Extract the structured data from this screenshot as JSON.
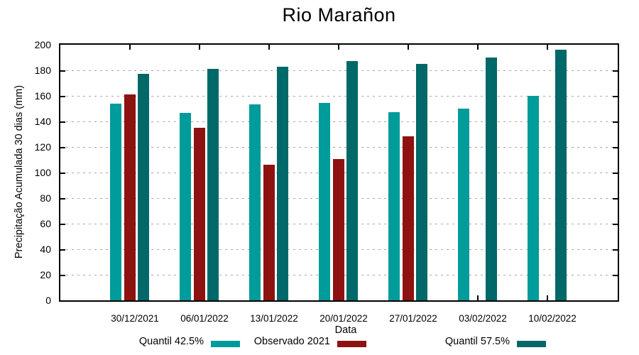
{
  "chart_data": {
    "type": "bar",
    "title": "Rio Marañon",
    "xlabel": "Data",
    "ylabel": "Precipitação Acumulada 30 dias (mm)",
    "ylim": [
      0,
      200
    ],
    "ytick_step": 20,
    "grid": true,
    "legend_position": "bottom",
    "categories": [
      "30/12/2021",
      "06/01/2022",
      "13/01/2022",
      "20/01/2022",
      "27/01/2022",
      "03/02/2022",
      "10/02/2022"
    ],
    "series": [
      {
        "name": "Quantil 42.5%",
        "color": "#009B9B",
        "values": [
          154,
          146.5,
          153.5,
          154.5,
          147.5,
          150,
          160
        ]
      },
      {
        "name": "Observado 2021",
        "color": "#8E1210",
        "values": [
          161,
          135,
          106,
          110.5,
          128.5,
          null,
          null
        ]
      },
      {
        "name": "Quantil 57.5%",
        "color": "#006868",
        "values": [
          177,
          181,
          183,
          187,
          185,
          190,
          196
        ]
      }
    ],
    "colors": {
      "grid": "#a8a8a8",
      "axis": "#000000",
      "background": "#ffffff"
    }
  }
}
